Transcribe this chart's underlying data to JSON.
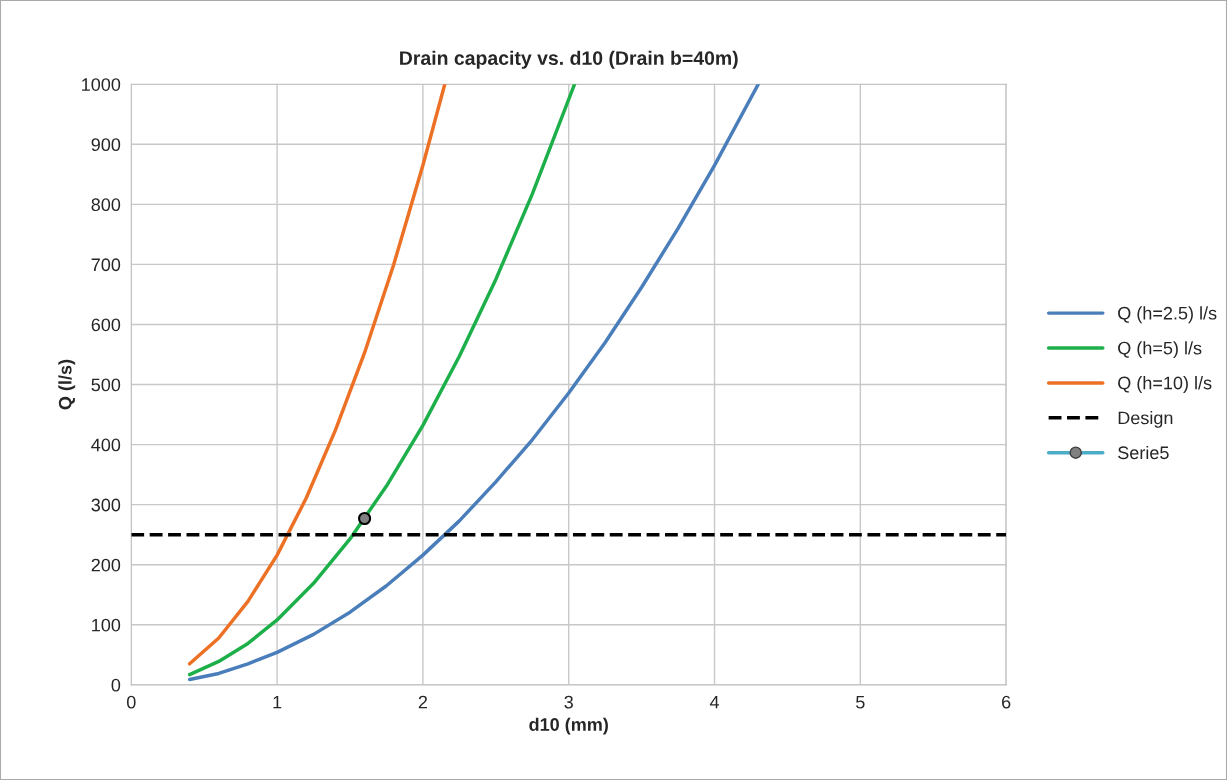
{
  "chart_data": {
    "type": "line",
    "title": "Drain capacity vs. d10 (Drain b=40m)",
    "xlabel": "d10 (mm)",
    "ylabel": "Q (l/s)",
    "xlim": [
      0,
      6
    ],
    "xticks": [
      0,
      1,
      2,
      3,
      4,
      5,
      6
    ],
    "ylim": [
      0,
      1000
    ],
    "yticks": [
      0,
      100,
      200,
      300,
      400,
      500,
      600,
      700,
      800,
      900,
      1000
    ],
    "grid": true,
    "legend": "right",
    "marker": "none",
    "line_style": "solid",
    "series": [
      {
        "name": "Q (h=2.5) l/s",
        "color": "#4a7ebb",
        "x": [
          0.4,
          0.6,
          0.8,
          1.0,
          1.25,
          1.5,
          1.75,
          2.0,
          2.25,
          2.5,
          2.75,
          3.0,
          3.25,
          3.5,
          3.75,
          4.0,
          4.3
        ],
        "values": [
          9,
          19,
          35,
          54,
          84,
          121,
          165,
          216,
          273,
          338,
          408,
          486,
          570,
          662,
          760,
          865,
          1000
        ]
      },
      {
        "name": "Q (h=5) l/s",
        "color": "#1db04a",
        "x": [
          0.4,
          0.6,
          0.8,
          1.0,
          1.25,
          1.5,
          1.75,
          2.0,
          2.25,
          2.5,
          2.75,
          3.04
        ],
        "values": [
          17,
          39,
          69,
          108,
          169,
          243,
          331,
          432,
          547,
          675,
          817,
          1000
        ]
      },
      {
        "name": "Q (h=10) l/s",
        "color": "#ed7125",
        "x": [
          0.4,
          0.6,
          0.8,
          1.0,
          1.2,
          1.4,
          1.6,
          1.8,
          2.0,
          2.15
        ],
        "values": [
          35,
          78,
          139,
          216,
          311,
          424,
          553,
          700,
          865,
          1000
        ]
      },
      {
        "name": "Design",
        "color": "#000000",
        "line_style": "dashed",
        "x": [
          0,
          6
        ],
        "values": [
          250,
          250
        ]
      },
      {
        "name": "Serie5",
        "color": "#4bacc6",
        "colors": [
          "#808080"
        ],
        "marker": "circle",
        "x": [
          1.6
        ],
        "values": [
          277
        ]
      }
    ]
  }
}
